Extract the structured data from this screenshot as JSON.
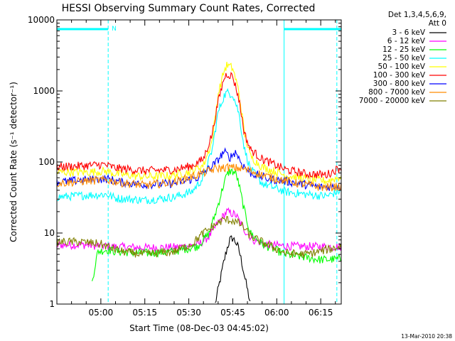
{
  "chart_data": {
    "type": "line",
    "title": "HESSI Observing Summary Count Rates, Corrected",
    "xlabel": "Start Time (08-Dec-03 04:45:02)",
    "ylabel": "Corrected Count Rate (s⁻¹ detector⁻¹)",
    "y_scale": "log",
    "ylim": [
      1,
      10000
    ],
    "xlim_minutes": [
      0,
      97
    ],
    "x_tick_minutes": [
      15,
      30,
      45,
      60,
      75,
      90
    ],
    "x_tick_labels": [
      "05:00",
      "05:15",
      "05:30",
      "05:45",
      "06:00",
      "06:15"
    ],
    "y_ticks": [
      1,
      10,
      100,
      1000,
      10000
    ],
    "y_tick_labels": [
      "1",
      "10",
      "100",
      "1000",
      "10000"
    ],
    "grid": false,
    "legend_header": [
      "Det 1,3,4,5,6,9,",
      "Att 0"
    ],
    "legend_position": "right",
    "timestamp": "13-Mar-2010 20:38",
    "night_marker_label": "N",
    "night_bar_minutes": [
      [
        0,
        17.5
      ],
      [
        77.5,
        97
      ]
    ],
    "dashed_marker_minutes": [
      17.5,
      95.5
    ],
    "solid_marker_minutes": [
      0,
      77.5
    ],
    "series": [
      {
        "name": "3 - 6 keV",
        "color": "#000000",
        "points": [
          [
            54,
            1
          ],
          [
            55,
            1.6
          ],
          [
            56,
            2.5
          ],
          [
            57,
            4
          ],
          [
            58,
            6
          ],
          [
            59,
            8
          ],
          [
            60,
            8.5
          ],
          [
            61,
            7.5
          ],
          [
            62,
            6
          ],
          [
            63,
            4
          ],
          [
            64,
            2.5
          ],
          [
            65,
            1.6
          ],
          [
            66,
            1
          ]
        ]
      },
      {
        "name": "6 - 12 keV",
        "color": "#ff00ff",
        "points": [
          [
            0,
            6.8
          ],
          [
            10,
            6.8
          ],
          [
            17,
            6.5
          ],
          [
            20,
            6.4
          ],
          [
            30,
            6.2
          ],
          [
            40,
            6.3
          ],
          [
            48,
            6.8
          ],
          [
            52,
            9
          ],
          [
            55,
            14
          ],
          [
            58,
            20
          ],
          [
            61,
            18
          ],
          [
            64,
            11
          ],
          [
            67,
            8
          ],
          [
            72,
            6.8
          ],
          [
            80,
            6.5
          ],
          [
            97,
            6.4
          ]
        ]
      },
      {
        "name": "12 - 25 keV",
        "color": "#00ff00",
        "points": [
          [
            12,
            2
          ],
          [
            13,
            3.5
          ],
          [
            14,
            5.5
          ],
          [
            17,
            5.8
          ],
          [
            20,
            5.5
          ],
          [
            30,
            5.2
          ],
          [
            40,
            5.5
          ],
          [
            48,
            6.5
          ],
          [
            52,
            10
          ],
          [
            55,
            25
          ],
          [
            57,
            50
          ],
          [
            58,
            65
          ],
          [
            59,
            75
          ],
          [
            61,
            70
          ],
          [
            62,
            50
          ],
          [
            64,
            20
          ],
          [
            66,
            10
          ],
          [
            70,
            7
          ],
          [
            78,
            5
          ],
          [
            90,
            4.2
          ],
          [
            97,
            4.3
          ]
        ]
      },
      {
        "name": "25 - 50 keV",
        "color": "#00ffff",
        "points": [
          [
            0,
            32
          ],
          [
            10,
            34
          ],
          [
            17,
            35
          ],
          [
            20,
            31
          ],
          [
            30,
            29
          ],
          [
            40,
            32
          ],
          [
            46,
            38
          ],
          [
            50,
            60
          ],
          [
            53,
            150
          ],
          [
            55,
            500
          ],
          [
            57,
            850
          ],
          [
            58,
            950
          ],
          [
            60,
            900
          ],
          [
            62,
            500
          ],
          [
            64,
            150
          ],
          [
            66,
            80
          ],
          [
            70,
            50
          ],
          [
            78,
            38
          ],
          [
            85,
            35
          ],
          [
            92,
            33
          ],
          [
            97,
            40
          ]
        ]
      },
      {
        "name": "50 - 100 keV",
        "color": "#ffff00",
        "points": [
          [
            0,
            72
          ],
          [
            10,
            72
          ],
          [
            17,
            74
          ],
          [
            20,
            68
          ],
          [
            30,
            62
          ],
          [
            38,
            64
          ],
          [
            45,
            72
          ],
          [
            50,
            90
          ],
          [
            53,
            200
          ],
          [
            55,
            900
          ],
          [
            57,
            1900
          ],
          [
            58,
            2300
          ],
          [
            60,
            2100
          ],
          [
            62,
            1000
          ],
          [
            64,
            250
          ],
          [
            66,
            120
          ],
          [
            70,
            85
          ],
          [
            78,
            65
          ],
          [
            85,
            58
          ],
          [
            92,
            54
          ],
          [
            97,
            62
          ]
        ]
      },
      {
        "name": "100 - 300 keV",
        "color": "#ff0000",
        "points": [
          [
            0,
            85
          ],
          [
            8,
            88
          ],
          [
            16,
            92
          ],
          [
            20,
            82
          ],
          [
            30,
            75
          ],
          [
            40,
            78
          ],
          [
            46,
            88
          ],
          [
            50,
            110
          ],
          [
            53,
            250
          ],
          [
            55,
            700
          ],
          [
            57,
            1500
          ],
          [
            58,
            1750
          ],
          [
            60,
            1600
          ],
          [
            62,
            800
          ],
          [
            64,
            250
          ],
          [
            66,
            150
          ],
          [
            70,
            110
          ],
          [
            78,
            78
          ],
          [
            85,
            68
          ],
          [
            92,
            66
          ],
          [
            97,
            85
          ]
        ]
      },
      {
        "name": "300 - 800 keV",
        "color": "#0000ff",
        "points": [
          [
            0,
            52
          ],
          [
            10,
            56
          ],
          [
            17,
            58
          ],
          [
            22,
            52
          ],
          [
            30,
            48
          ],
          [
            40,
            50
          ],
          [
            48,
            60
          ],
          [
            54,
            95
          ],
          [
            57,
            140
          ],
          [
            59,
            115
          ],
          [
            61,
            140
          ],
          [
            63,
            95
          ],
          [
            66,
            70
          ],
          [
            72,
            58
          ],
          [
            80,
            52
          ],
          [
            90,
            44
          ],
          [
            97,
            46
          ]
        ]
      },
      {
        "name": "800 - 7000 keV",
        "color": "#ff8c00",
        "points": [
          [
            0,
            50
          ],
          [
            10,
            54
          ],
          [
            17,
            56
          ],
          [
            22,
            51
          ],
          [
            30,
            47
          ],
          [
            40,
            52
          ],
          [
            48,
            66
          ],
          [
            54,
            80
          ],
          [
            58,
            84
          ],
          [
            62,
            82
          ],
          [
            66,
            75
          ],
          [
            72,
            62
          ],
          [
            80,
            52
          ],
          [
            90,
            44
          ],
          [
            97,
            45
          ]
        ]
      },
      {
        "name": "7000 - 20000 keV",
        "color": "#808000",
        "points": [
          [
            0,
            7.5
          ],
          [
            8,
            7.5
          ],
          [
            15,
            7
          ],
          [
            17,
            6.5
          ],
          [
            22,
            5.5
          ],
          [
            30,
            5
          ],
          [
            40,
            5.5
          ],
          [
            46,
            7
          ],
          [
            50,
            10
          ],
          [
            54,
            13
          ],
          [
            57,
            15.5
          ],
          [
            60,
            15
          ],
          [
            63,
            13
          ],
          [
            66,
            9
          ],
          [
            72,
            6.8
          ],
          [
            78,
            5.2
          ],
          [
            85,
            5
          ],
          [
            92,
            5.8
          ],
          [
            97,
            6.5
          ]
        ]
      }
    ]
  }
}
